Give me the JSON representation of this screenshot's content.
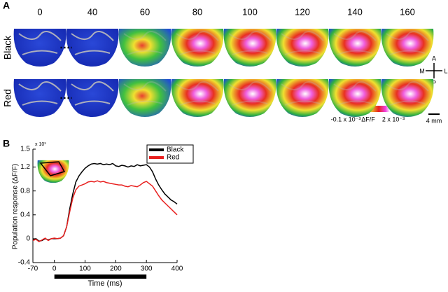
{
  "panel_a": {
    "label": "A",
    "times": [
      0,
      40,
      60,
      80,
      100,
      120,
      140,
      160
    ],
    "rows": [
      "Black",
      "Red"
    ],
    "compass": {
      "anterior": "A",
      "posterior": "P",
      "medial": "M",
      "lateral": "L"
    },
    "colorbar": {
      "min_label": "-0.1 x 10⁻³",
      "name": "ΔF/F",
      "max_label": "2 x 10⁻³"
    },
    "scale_bar": "4 mm"
  },
  "chart_data": {
    "type": "line",
    "panel_label": "B",
    "y_label": "Population response (ΔF/F)",
    "y_multiplier": "x 10³",
    "x_label": "Time (ms)",
    "x": [
      -70,
      -60,
      -50,
      -40,
      -30,
      -20,
      -10,
      0,
      10,
      20,
      30,
      40,
      50,
      60,
      70,
      80,
      90,
      100,
      110,
      120,
      130,
      140,
      150,
      160,
      170,
      180,
      190,
      200,
      210,
      220,
      230,
      240,
      250,
      260,
      270,
      280,
      290,
      300,
      310,
      320,
      330,
      340,
      350,
      360,
      370,
      380,
      390,
      400
    ],
    "series": [
      {
        "name": "Black",
        "color": "#000000",
        "values": [
          -0.02,
          0,
          -0.04,
          -0.03,
          0,
          -0.02,
          0,
          0,
          0,
          0.01,
          0.05,
          0.2,
          0.5,
          0.75,
          0.95,
          1.05,
          1.12,
          1.18,
          1.22,
          1.25,
          1.26,
          1.25,
          1.26,
          1.24,
          1.25,
          1.24,
          1.26,
          1.22,
          1.21,
          1.23,
          1.22,
          1.2,
          1.22,
          1.21,
          1.24,
          1.22,
          1.23,
          1.24,
          1.2,
          1.12,
          1.0,
          0.9,
          0.82,
          0.75,
          0.7,
          0.65,
          0.62,
          0.58
        ]
      },
      {
        "name": "Red",
        "color": "#e8201f",
        "values": [
          -0.03,
          -0.01,
          -0.05,
          -0.02,
          0.01,
          -0.03,
          0,
          0.01,
          0,
          0.01,
          0.05,
          0.2,
          0.45,
          0.68,
          0.82,
          0.88,
          0.9,
          0.92,
          0.95,
          0.96,
          0.95,
          0.97,
          0.95,
          0.96,
          0.94,
          0.93,
          0.92,
          0.91,
          0.9,
          0.9,
          0.88,
          0.87,
          0.89,
          0.88,
          0.87,
          0.9,
          0.94,
          0.96,
          0.92,
          0.88,
          0.8,
          0.72,
          0.65,
          0.6,
          0.55,
          0.5,
          0.45,
          0.4
        ]
      }
    ],
    "xlim": [
      -70,
      400
    ],
    "xticks": [
      -70,
      0,
      100,
      200,
      300,
      400
    ],
    "ylim": [
      -0.4,
      1.5
    ],
    "yticks": [
      -0.4,
      0,
      0.4,
      0.8,
      1.2,
      1.5
    ],
    "stimulus": [
      0,
      300
    ],
    "legend": "top-right"
  }
}
